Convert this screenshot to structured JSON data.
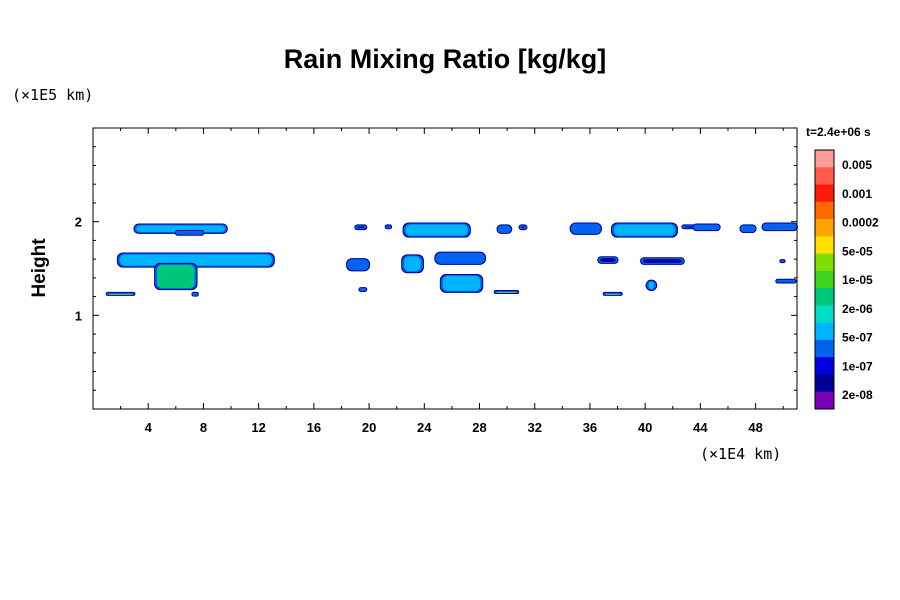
{
  "chart_data": {
    "type": "heatmap",
    "title": "Rain Mixing Ratio [kg/kg]",
    "ylabel": "Height",
    "x_unit": "(×1E4 km)",
    "y_unit": "(×1E5 km)",
    "time_label": "t=2.4e+06 s",
    "xlim": [
      0,
      51
    ],
    "ylim": [
      0,
      3
    ],
    "x_ticks": [
      4,
      8,
      12,
      16,
      20,
      24,
      28,
      32,
      36,
      40,
      44,
      48
    ],
    "y_ticks": [
      1,
      2
    ],
    "colorbar": {
      "levels": [
        "0.005",
        "0.001",
        "0.0002",
        "5e-05",
        "1e-05",
        "2e-06",
        "5e-07",
        "1e-07",
        "2e-08"
      ],
      "colors": [
        "#ff9a9a",
        "#ff5a4a",
        "#ff1a0a",
        "#ff6a00",
        "#ffa500",
        "#ffe000",
        "#7fdf00",
        "#3fd41e",
        "#00c878",
        "#00dcc8",
        "#00b4ff",
        "#0064f0",
        "#0000e0",
        "#000096",
        "#7800b4"
      ]
    },
    "features": [
      {
        "x": [
          3,
          9.7
        ],
        "y": [
          1.88,
          1.97
        ],
        "level": "2e-06"
      },
      {
        "x": [
          6,
          8
        ],
        "y": [
          1.86,
          1.9
        ],
        "level": "5e-07"
      },
      {
        "x": [
          1.8,
          13.1
        ],
        "y": [
          1.52,
          1.66
        ],
        "level": "2e-06"
      },
      {
        "x": [
          4.5,
          7.5
        ],
        "y": [
          1.28,
          1.55
        ],
        "level": "1e-05"
      },
      {
        "x": [
          1,
          3
        ],
        "y": [
          1.22,
          1.24
        ],
        "level": "5e-05"
      },
      {
        "x": [
          7.2,
          7.6
        ],
        "y": [
          1.21,
          1.24
        ],
        "level": "1e-05"
      },
      {
        "x": [
          19,
          19.8
        ],
        "y": [
          1.92,
          1.96
        ],
        "level": "1e-07"
      },
      {
        "x": [
          21.2,
          21.6
        ],
        "y": [
          1.93,
          1.96
        ],
        "level": "1e-07"
      },
      {
        "x": [
          18.4,
          20
        ],
        "y": [
          1.48,
          1.6
        ],
        "level": "5e-07"
      },
      {
        "x": [
          19.3,
          19.8
        ],
        "y": [
          1.26,
          1.29
        ],
        "level": "5e-07"
      },
      {
        "x": [
          22.4,
          23.9
        ],
        "y": [
          1.46,
          1.64
        ],
        "level": "2e-06"
      },
      {
        "x": [
          22.5,
          27.3
        ],
        "y": [
          1.84,
          1.98
        ],
        "level": "2e-06"
      },
      {
        "x": [
          24.8,
          28.4
        ],
        "y": [
          1.55,
          1.67
        ],
        "level": "5e-07"
      },
      {
        "x": [
          25.2,
          28.2
        ],
        "y": [
          1.25,
          1.43
        ],
        "level": "2e-06"
      },
      {
        "x": [
          29.1,
          30.8
        ],
        "y": [
          1.24,
          1.26
        ],
        "level": "5e-05"
      },
      {
        "x": [
          29.3,
          30.3
        ],
        "y": [
          1.88,
          1.96
        ],
        "level": "5e-07"
      },
      {
        "x": [
          30.9,
          31.4
        ],
        "y": [
          1.92,
          1.96
        ],
        "level": "1e-07"
      },
      {
        "x": [
          34.6,
          36.8
        ],
        "y": [
          1.87,
          1.98
        ],
        "level": "5e-07"
      },
      {
        "x": [
          36.6,
          38
        ],
        "y": [
          1.56,
          1.62
        ],
        "level": "1e-07"
      },
      {
        "x": [
          37,
          38.3
        ],
        "y": [
          1.22,
          1.24
        ],
        "level": "5e-05"
      },
      {
        "x": [
          37.6,
          42.3
        ],
        "y": [
          1.84,
          1.98
        ],
        "level": "2e-06"
      },
      {
        "x": [
          39.7,
          42.8
        ],
        "y": [
          1.55,
          1.61
        ],
        "level": "1e-07"
      },
      {
        "x": [
          40.1,
          40.8
        ],
        "y": [
          1.27,
          1.37
        ],
        "level": "2e-06"
      },
      {
        "x": [
          42.7,
          43.6
        ],
        "y": [
          1.93,
          1.96
        ],
        "level": "1e-07"
      },
      {
        "x": [
          43.5,
          45.4
        ],
        "y": [
          1.91,
          1.97
        ],
        "level": "5e-07"
      },
      {
        "x": [
          46.9,
          48
        ],
        "y": [
          1.89,
          1.96
        ],
        "level": "5e-07"
      },
      {
        "x": [
          48.5,
          51
        ],
        "y": [
          1.91,
          1.98
        ],
        "level": "5e-07"
      },
      {
        "x": [
          49.5,
          50.9
        ],
        "y": [
          1.35,
          1.38
        ],
        "level": "5e-07"
      },
      {
        "x": [
          49.8,
          50.1
        ],
        "y": [
          1.57,
          1.59
        ],
        "level": "2e-08"
      }
    ]
  }
}
